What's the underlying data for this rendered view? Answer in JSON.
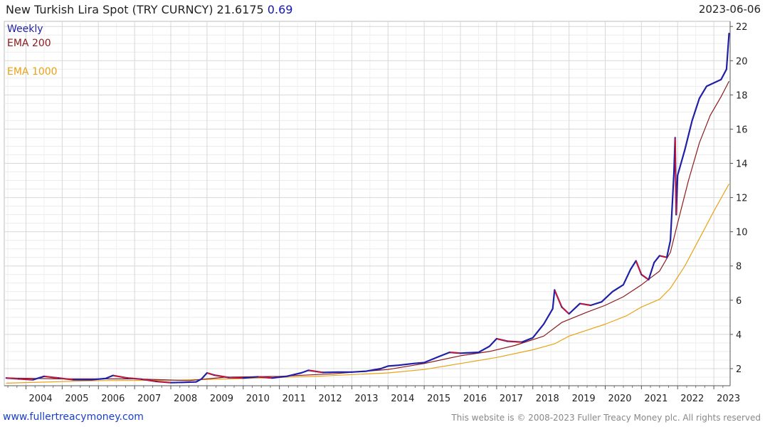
{
  "header": {
    "title": "New Turkish Lira Spot (TRY CURNCY) 21.6175",
    "change": "0.69",
    "date": "2023-06-06"
  },
  "footer": {
    "site": "www.fullertreacymoney.com",
    "copyright": "This website is © 2008-2023 Fuller Treacy Money plc. All rights reserved"
  },
  "colors": {
    "price": "#1f1fa8",
    "price_down": "#e0141e",
    "ema200": "#8b1a1a",
    "ema1000": "#e8a317",
    "grid": "#d8d8d8"
  },
  "chart_data": {
    "type": "line",
    "title": "New Turkish Lira Spot (TRY CURNCY)",
    "frequency": "Weekly",
    "xlim": [
      2003.4,
      2023.45
    ],
    "ylim": [
      1.0,
      22.3
    ],
    "y_ticks": [
      2,
      4,
      6,
      8,
      10,
      12,
      14,
      16,
      18,
      20,
      22
    ],
    "x_ticks": [
      2004,
      2005,
      2006,
      2007,
      2008,
      2009,
      2010,
      2011,
      2012,
      2013,
      2014,
      2015,
      2016,
      2017,
      2018,
      2019,
      2020,
      2021,
      2022,
      2023
    ],
    "grid": true,
    "legend_position": "top-left",
    "series": [
      {
        "name": "Weekly",
        "x": [
          2003.45,
          2003.8,
          2004.2,
          2004.5,
          2004.9,
          2005.3,
          2005.8,
          2006.2,
          2006.4,
          2006.8,
          2007.2,
          2007.6,
          2008.0,
          2008.4,
          2008.7,
          2008.85,
          2009.0,
          2009.2,
          2009.6,
          2010.0,
          2010.4,
          2010.8,
          2011.2,
          2011.6,
          2011.8,
          2012.2,
          2012.6,
          2013.0,
          2013.4,
          2013.8,
          2014.0,
          2014.3,
          2014.7,
          2015.0,
          2015.4,
          2015.7,
          2016.0,
          2016.5,
          2016.8,
          2017.0,
          2017.3,
          2017.7,
          2018.0,
          2018.3,
          2018.55,
          2018.6,
          2018.8,
          2019.0,
          2019.3,
          2019.6,
          2019.9,
          2020.2,
          2020.5,
          2020.7,
          2020.85,
          2021.0,
          2021.2,
          2021.35,
          2021.5,
          2021.7,
          2021.8,
          2021.9,
          2021.93,
          2021.96,
          2022.0,
          2022.2,
          2022.4,
          2022.6,
          2022.8,
          2023.0,
          2023.2,
          2023.35,
          2023.42
        ],
        "y": [
          1.45,
          1.4,
          1.35,
          1.55,
          1.45,
          1.35,
          1.35,
          1.42,
          1.6,
          1.45,
          1.38,
          1.25,
          1.18,
          1.2,
          1.22,
          1.4,
          1.75,
          1.62,
          1.48,
          1.45,
          1.52,
          1.45,
          1.55,
          1.75,
          1.9,
          1.78,
          1.8,
          1.8,
          1.85,
          2.0,
          2.15,
          2.2,
          2.3,
          2.35,
          2.7,
          2.95,
          2.9,
          2.95,
          3.3,
          3.75,
          3.6,
          3.55,
          3.8,
          4.6,
          5.5,
          6.6,
          5.6,
          5.2,
          5.8,
          5.7,
          5.9,
          6.5,
          6.9,
          7.8,
          8.3,
          7.5,
          7.2,
          8.2,
          8.6,
          8.5,
          9.5,
          13.5,
          15.5,
          11.0,
          13.3,
          14.8,
          16.5,
          17.8,
          18.5,
          18.7,
          18.9,
          19.5,
          21.6
        ]
      },
      {
        "name": "EMA 200",
        "x": [
          2003.45,
          2005,
          2007,
          2008.5,
          2009.5,
          2011,
          2012.5,
          2014,
          2015,
          2016,
          2016.8,
          2017.5,
          2018.3,
          2018.8,
          2019.5,
          2020,
          2020.5,
          2021,
          2021.5,
          2021.8,
          2022.0,
          2022.3,
          2022.6,
          2022.9,
          2023.2,
          2023.42
        ],
        "y": [
          1.45,
          1.4,
          1.4,
          1.3,
          1.5,
          1.55,
          1.7,
          1.95,
          2.3,
          2.75,
          3.0,
          3.35,
          3.9,
          4.7,
          5.3,
          5.7,
          6.2,
          6.9,
          7.7,
          8.8,
          10.5,
          13.0,
          15.2,
          16.8,
          17.9,
          18.8
        ]
      },
      {
        "name": "EMA 1000",
        "x": [
          2003.45,
          2006,
          2008,
          2010,
          2012,
          2014,
          2015,
          2016,
          2017,
          2018,
          2018.6,
          2019,
          2020,
          2020.6,
          2021,
          2021.5,
          2021.8,
          2022.2,
          2022.6,
          2023.0,
          2023.42
        ],
        "y": [
          1.15,
          1.3,
          1.32,
          1.42,
          1.55,
          1.75,
          1.95,
          2.3,
          2.65,
          3.1,
          3.45,
          3.9,
          4.6,
          5.1,
          5.6,
          6.05,
          6.7,
          8.0,
          9.6,
          11.2,
          12.8
        ]
      }
    ]
  }
}
